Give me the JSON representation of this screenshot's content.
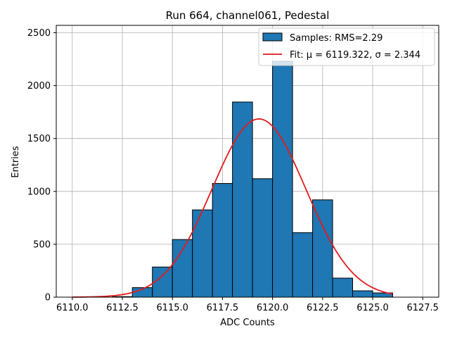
{
  "chart_data": {
    "type": "bar",
    "title": "Run 664, channel061, Pedestal",
    "xlabel": "ADC Counts",
    "ylabel": "Entries",
    "xlim": [
      6109.2,
      6128.3
    ],
    "ylim": [
      0,
      2570
    ],
    "xticks": [
      6110.0,
      6112.5,
      6115.0,
      6117.5,
      6120.0,
      6122.5,
      6125.0,
      6127.5
    ],
    "xtick_labels": [
      "6110.0",
      "6112.5",
      "6115.0",
      "6117.5",
      "6120.0",
      "6122.5",
      "6125.0",
      "6127.5"
    ],
    "yticks": [
      0,
      500,
      1000,
      1500,
      2000,
      2500
    ],
    "ytick_labels": [
      "0",
      "500",
      "1000",
      "1500",
      "2000",
      "2500"
    ],
    "grid": true,
    "legend_position": "top-right",
    "histogram": {
      "name": "Samples: RMS=2.29",
      "bin_edges": [
        6110,
        6111,
        6112,
        6113,
        6114,
        6115,
        6116,
        6117,
        6118,
        6119,
        6120,
        6121,
        6122,
        6123,
        6124,
        6125,
        6126
      ],
      "counts": [
        0,
        0,
        5,
        90,
        285,
        545,
        825,
        1075,
        1845,
        1120,
        2230,
        610,
        920,
        180,
        60,
        40
      ],
      "color": "#1f77b4",
      "edgecolor": "#000000"
    },
    "fit": {
      "name": "Fit: μ = 6119.322, σ = 2.344",
      "mu": 6119.322,
      "sigma": 2.344,
      "amplitude": 1685,
      "x_range": [
        6110,
        6126
      ],
      "color": "#e41a1c"
    }
  }
}
